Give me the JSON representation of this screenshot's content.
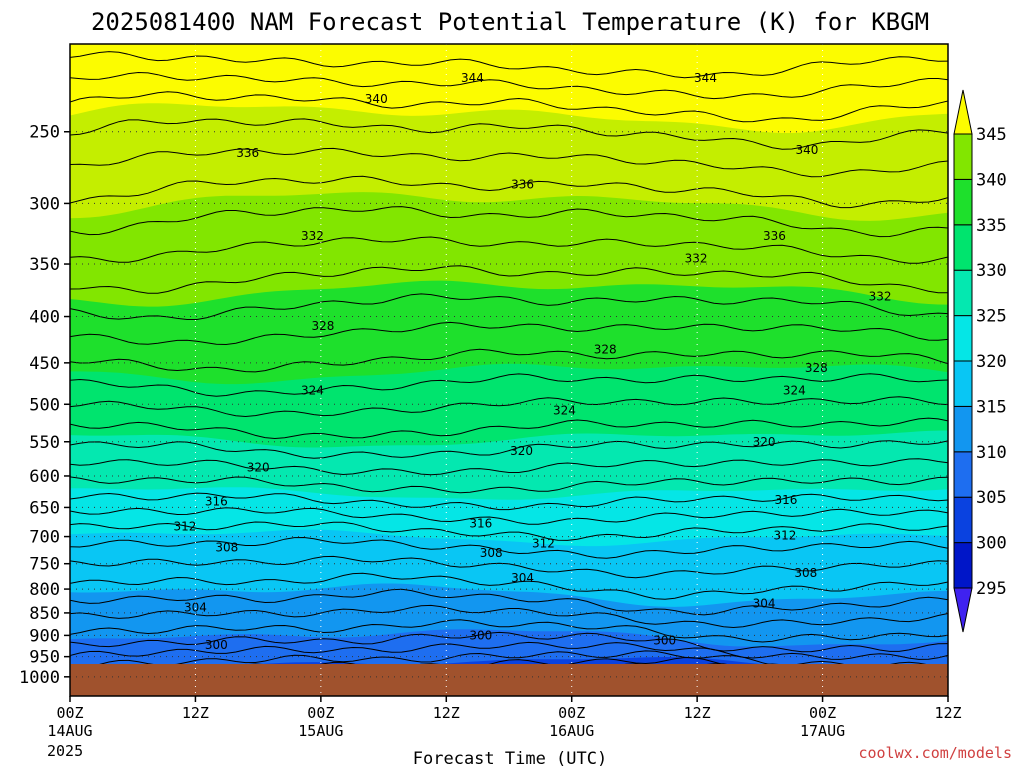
{
  "chart_data": {
    "type": "heatmap",
    "title": "2025081400 NAM Forecast Potential Temperature (K) for KBGM",
    "xlabel": "Forecast Time (UTC)",
    "ylabel": "",
    "y_scale": "log",
    "y_inverted": true,
    "ylim": [
      1050,
      200
    ],
    "y_ticks": [
      "250",
      "300",
      "350",
      "400",
      "450",
      "500",
      "550",
      "600",
      "650",
      "700",
      "750",
      "800",
      "850",
      "900",
      "950",
      "1000"
    ],
    "x_ticks": [
      {
        "top": "00Z",
        "bottom": "14AUG"
      },
      {
        "top": "12Z",
        "bottom": ""
      },
      {
        "top": "00Z",
        "bottom": "15AUG"
      },
      {
        "top": "12Z",
        "bottom": ""
      },
      {
        "top": "00Z",
        "bottom": "16AUG"
      },
      {
        "top": "12Z",
        "bottom": ""
      },
      {
        "top": "00Z",
        "bottom": "17AUG"
      },
      {
        "top": "12Z",
        "bottom": ""
      }
    ],
    "x_hours": [
      0,
      12,
      24,
      36,
      48,
      60,
      72,
      84
    ],
    "year_label": "2025",
    "grid": true,
    "colorbar": {
      "labels": [
        "295",
        "300",
        "305",
        "310",
        "315",
        "320",
        "325",
        "330",
        "335",
        "340",
        "345"
      ],
      "colors": [
        "#3f22f0",
        "#0016c8",
        "#0a42e0",
        "#1e6ef0",
        "#1296f0",
        "#09c6f4",
        "#05e6e6",
        "#04e8b0",
        "#00e46e",
        "#1ee02c",
        "#82e600",
        "#c4ee00",
        "#fcfc00"
      ]
    },
    "contour_labels": [
      {
        "text": "344",
        "hour": 38.5,
        "pressure": 218
      },
      {
        "text": "344",
        "hour": 60.8,
        "pressure": 218
      },
      {
        "text": "340",
        "hour": 29.3,
        "pressure": 230
      },
      {
        "text": "340",
        "hour": 70.5,
        "pressure": 262
      },
      {
        "text": "336",
        "hour": 17.0,
        "pressure": 264
      },
      {
        "text": "336",
        "hour": 43.3,
        "pressure": 286
      },
      {
        "text": "336",
        "hour": 67.4,
        "pressure": 326
      },
      {
        "text": "332",
        "hour": 23.2,
        "pressure": 326
      },
      {
        "text": "332",
        "hour": 59.9,
        "pressure": 345
      },
      {
        "text": "332",
        "hour": 77.5,
        "pressure": 380
      },
      {
        "text": "328",
        "hour": 24.2,
        "pressure": 410
      },
      {
        "text": "328",
        "hour": 51.2,
        "pressure": 435
      },
      {
        "text": "328",
        "hour": 71.4,
        "pressure": 456
      },
      {
        "text": "324",
        "hour": 23.2,
        "pressure": 483
      },
      {
        "text": "324",
        "hour": 47.3,
        "pressure": 508
      },
      {
        "text": "324",
        "hour": 69.3,
        "pressure": 483
      },
      {
        "text": "320",
        "hour": 18.0,
        "pressure": 587
      },
      {
        "text": "320",
        "hour": 43.2,
        "pressure": 563
      },
      {
        "text": "320",
        "hour": 66.4,
        "pressure": 550
      },
      {
        "text": "316",
        "hour": 14.0,
        "pressure": 640
      },
      {
        "text": "316",
        "hour": 39.3,
        "pressure": 677
      },
      {
        "text": "316",
        "hour": 68.5,
        "pressure": 638
      },
      {
        "text": "312",
        "hour": 11.0,
        "pressure": 682
      },
      {
        "text": "312",
        "hour": 45.3,
        "pressure": 712
      },
      {
        "text": "312",
        "hour": 68.4,
        "pressure": 698
      },
      {
        "text": "308",
        "hour": 15.0,
        "pressure": 720
      },
      {
        "text": "308",
        "hour": 40.3,
        "pressure": 730
      },
      {
        "text": "308",
        "hour": 70.4,
        "pressure": 768
      },
      {
        "text": "304",
        "hour": 43.3,
        "pressure": 778
      },
      {
        "text": "304",
        "hour": 12.0,
        "pressure": 838
      },
      {
        "text": "304",
        "hour": 66.4,
        "pressure": 830
      },
      {
        "text": "300",
        "hour": 14.0,
        "pressure": 922
      },
      {
        "text": "300",
        "hour": 39.3,
        "pressure": 900
      },
      {
        "text": "300",
        "hour": 56.9,
        "pressure": 912
      }
    ]
  },
  "credit": "coolwx.com/models"
}
